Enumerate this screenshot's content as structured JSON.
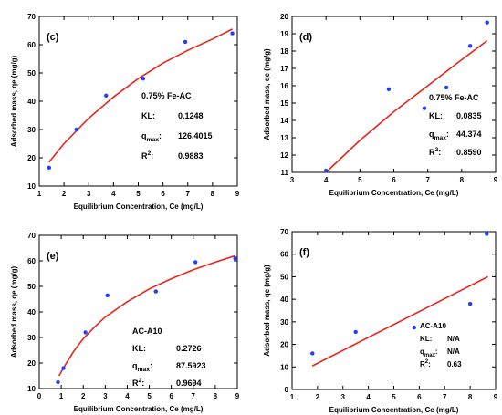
{
  "chart_data": [
    {
      "type": "scatter",
      "panel_label": "(c)",
      "xlabel": "Equilibrium Concentration, Ce (mg/L)",
      "ylabel": "Adsorbed mass, qe (mg/g)",
      "xlim": [
        1,
        9
      ],
      "ylim": [
        10,
        70
      ],
      "xticks": [
        1,
        2,
        3,
        4,
        5,
        6,
        7,
        8,
        9
      ],
      "yticks": [
        10,
        20,
        30,
        40,
        50,
        60,
        70
      ],
      "grid": false,
      "points": {
        "x": [
          1.4,
          2.5,
          3.7,
          5.2,
          6.9,
          8.8
        ],
        "y": [
          16.5,
          30.0,
          42.0,
          48.0,
          61.0,
          64.0
        ]
      },
      "fit": {
        "x": [
          1.4,
          2.0,
          3.0,
          4.0,
          5.0,
          6.0,
          7.0,
          8.0,
          8.8
        ],
        "y": [
          18.5,
          25.0,
          34.0,
          41.5,
          48.0,
          53.5,
          58.0,
          62.0,
          65.5
        ]
      },
      "annotations": [
        {
          "label": "0.75% Fe-AC",
          "value": ""
        },
        {
          "label": "KL:",
          "value": "0.1248"
        },
        {
          "label": "qmax:",
          "value": "126.4015"
        },
        {
          "label": "R2:",
          "value": "0.9883"
        }
      ],
      "colors": {
        "points": "#1f3fff",
        "fit": "#e8251c"
      }
    },
    {
      "type": "scatter",
      "panel_label": "(d)",
      "xlabel": "Equilibrium Concentration, Ce (mg/L)",
      "ylabel": "Adsorbed mass, qe (mg/g)",
      "xlim": [
        3,
        9
      ],
      "ylim": [
        11,
        20
      ],
      "xticks": [
        3,
        4,
        5,
        6,
        7,
        8,
        9
      ],
      "yticks": [
        11,
        12,
        13,
        14,
        15,
        16,
        17,
        18,
        19,
        20
      ],
      "grid": false,
      "points": {
        "x": [
          4.0,
          5.85,
          6.9,
          7.55,
          8.25,
          8.75
        ],
        "y": [
          11.1,
          15.8,
          14.7,
          15.9,
          18.3,
          19.65
        ]
      },
      "fit": {
        "x": [
          4.0,
          5.0,
          6.0,
          7.0,
          8.0,
          8.75
        ],
        "y": [
          11.0,
          12.85,
          14.5,
          16.0,
          17.5,
          18.6
        ]
      },
      "annotations": [
        {
          "label": "0.75% Fe-AC",
          "value": ""
        },
        {
          "label": "KL:",
          "value": "0.0835"
        },
        {
          "label": "qmax:",
          "value": "44.374"
        },
        {
          "label": "R2:",
          "value": "0.8590"
        }
      ],
      "colors": {
        "points": "#1f3fff",
        "fit": "#e8251c"
      }
    },
    {
      "type": "scatter",
      "panel_label": "(e)",
      "xlabel": "Equilibrium Concentration, Ce (mg/L)",
      "ylabel": "Adsorbed mass, qe (mg/g)",
      "xlim": [
        0,
        9
      ],
      "ylim": [
        10,
        70
      ],
      "xticks": [
        0,
        1,
        2,
        3,
        4,
        5,
        6,
        7,
        8,
        9
      ],
      "yticks": [
        10,
        20,
        30,
        40,
        50,
        60,
        70
      ],
      "grid": false,
      "points": {
        "x": [
          0.85,
          1.1,
          2.1,
          3.1,
          5.3,
          7.1,
          8.9
        ],
        "y": [
          12.5,
          18.0,
          32.0,
          46.5,
          48.0,
          59.5,
          61.0
        ]
      },
      "fit": {
        "x": [
          0.9,
          1.2,
          1.6,
          2.0,
          2.5,
          3.0,
          4.0,
          5.0,
          6.0,
          7.0,
          8.0,
          8.9
        ],
        "y": [
          15.0,
          19.5,
          25.0,
          29.5,
          34.0,
          38.0,
          44.0,
          49.0,
          53.0,
          56.5,
          59.5,
          62.0
        ]
      },
      "annotations": [
        {
          "label": "AC-A10",
          "value": ""
        },
        {
          "label": "KL:",
          "value": "0.2726"
        },
        {
          "label": "qmax:",
          "value": "87.5923"
        },
        {
          "label": "R2:",
          "value": "0.9694"
        }
      ],
      "colors": {
        "points": "#1f3fff",
        "fit": "#e8251c"
      }
    },
    {
      "type": "scatter",
      "panel_label": "(f)",
      "xlabel": "Equilibrium Concentration, Ce (mg/L)",
      "ylabel": "Adsorbed mass, qe (mg/g)",
      "xlim": [
        1,
        9
      ],
      "ylim": [
        0,
        70
      ],
      "xticks": [
        1,
        2,
        3,
        4,
        5,
        6,
        7,
        8,
        9
      ],
      "yticks": [
        0,
        10,
        20,
        30,
        40,
        50,
        60,
        70
      ],
      "grid": false,
      "points": {
        "x": [
          1.8,
          3.5,
          5.8,
          8.0,
          8.65
        ],
        "y": [
          16.0,
          25.5,
          27.5,
          38.0,
          69.0
        ]
      },
      "fit": {
        "x": [
          1.8,
          8.7
        ],
        "y": [
          10.5,
          50.0
        ]
      },
      "annotations": [
        {
          "label": "AC-A10",
          "value": ""
        },
        {
          "label": "KL:",
          "value": "N/A"
        },
        {
          "label": "qmax:",
          "value": "N/A"
        },
        {
          "label": "R2:",
          "value": "0.63"
        }
      ],
      "colors": {
        "points": "#1f3fff",
        "fit": "#e8251c"
      }
    }
  ]
}
